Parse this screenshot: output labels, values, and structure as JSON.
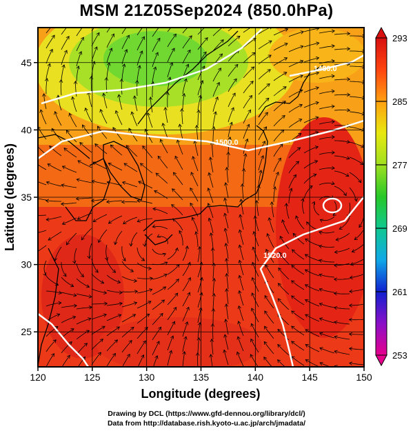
{
  "title": "MSM 21Z05Sep2024 (850.0hPa)",
  "map": {
    "xlabel": "Longitude (degrees)",
    "ylabel": "Latitude (degrees)",
    "lon_ticks": [
      "120",
      "125",
      "130",
      "135",
      "140",
      "145",
      "150"
    ],
    "lat_ticks": [
      "25",
      "30",
      "35",
      "40",
      "45"
    ],
    "lon_range": [
      120,
      150
    ],
    "lat_range": [
      22.4,
      47.6
    ],
    "contour_labels": [
      "1500.0",
      "1480.0",
      "1520.0"
    ]
  },
  "colorbar": {
    "ticks": [
      "293",
      "285",
      "277",
      "269",
      "261",
      "253"
    ],
    "range": [
      253,
      293
    ],
    "colors": [
      "#e6008c",
      "#8a10c8",
      "#1020d0",
      "#10a8e8",
      "#10c890",
      "#28c828",
      "#a0e020",
      "#e8e810",
      "#ffa010",
      "#ff4410",
      "#d81010"
    ]
  },
  "footer": {
    "line1": "Drawing by DCL (https://www.gfd-dennou.org/library/dcl/)",
    "line2": "Data from http://database.rish.kyoto-u.ac.jp/arch/jmadata/"
  }
}
